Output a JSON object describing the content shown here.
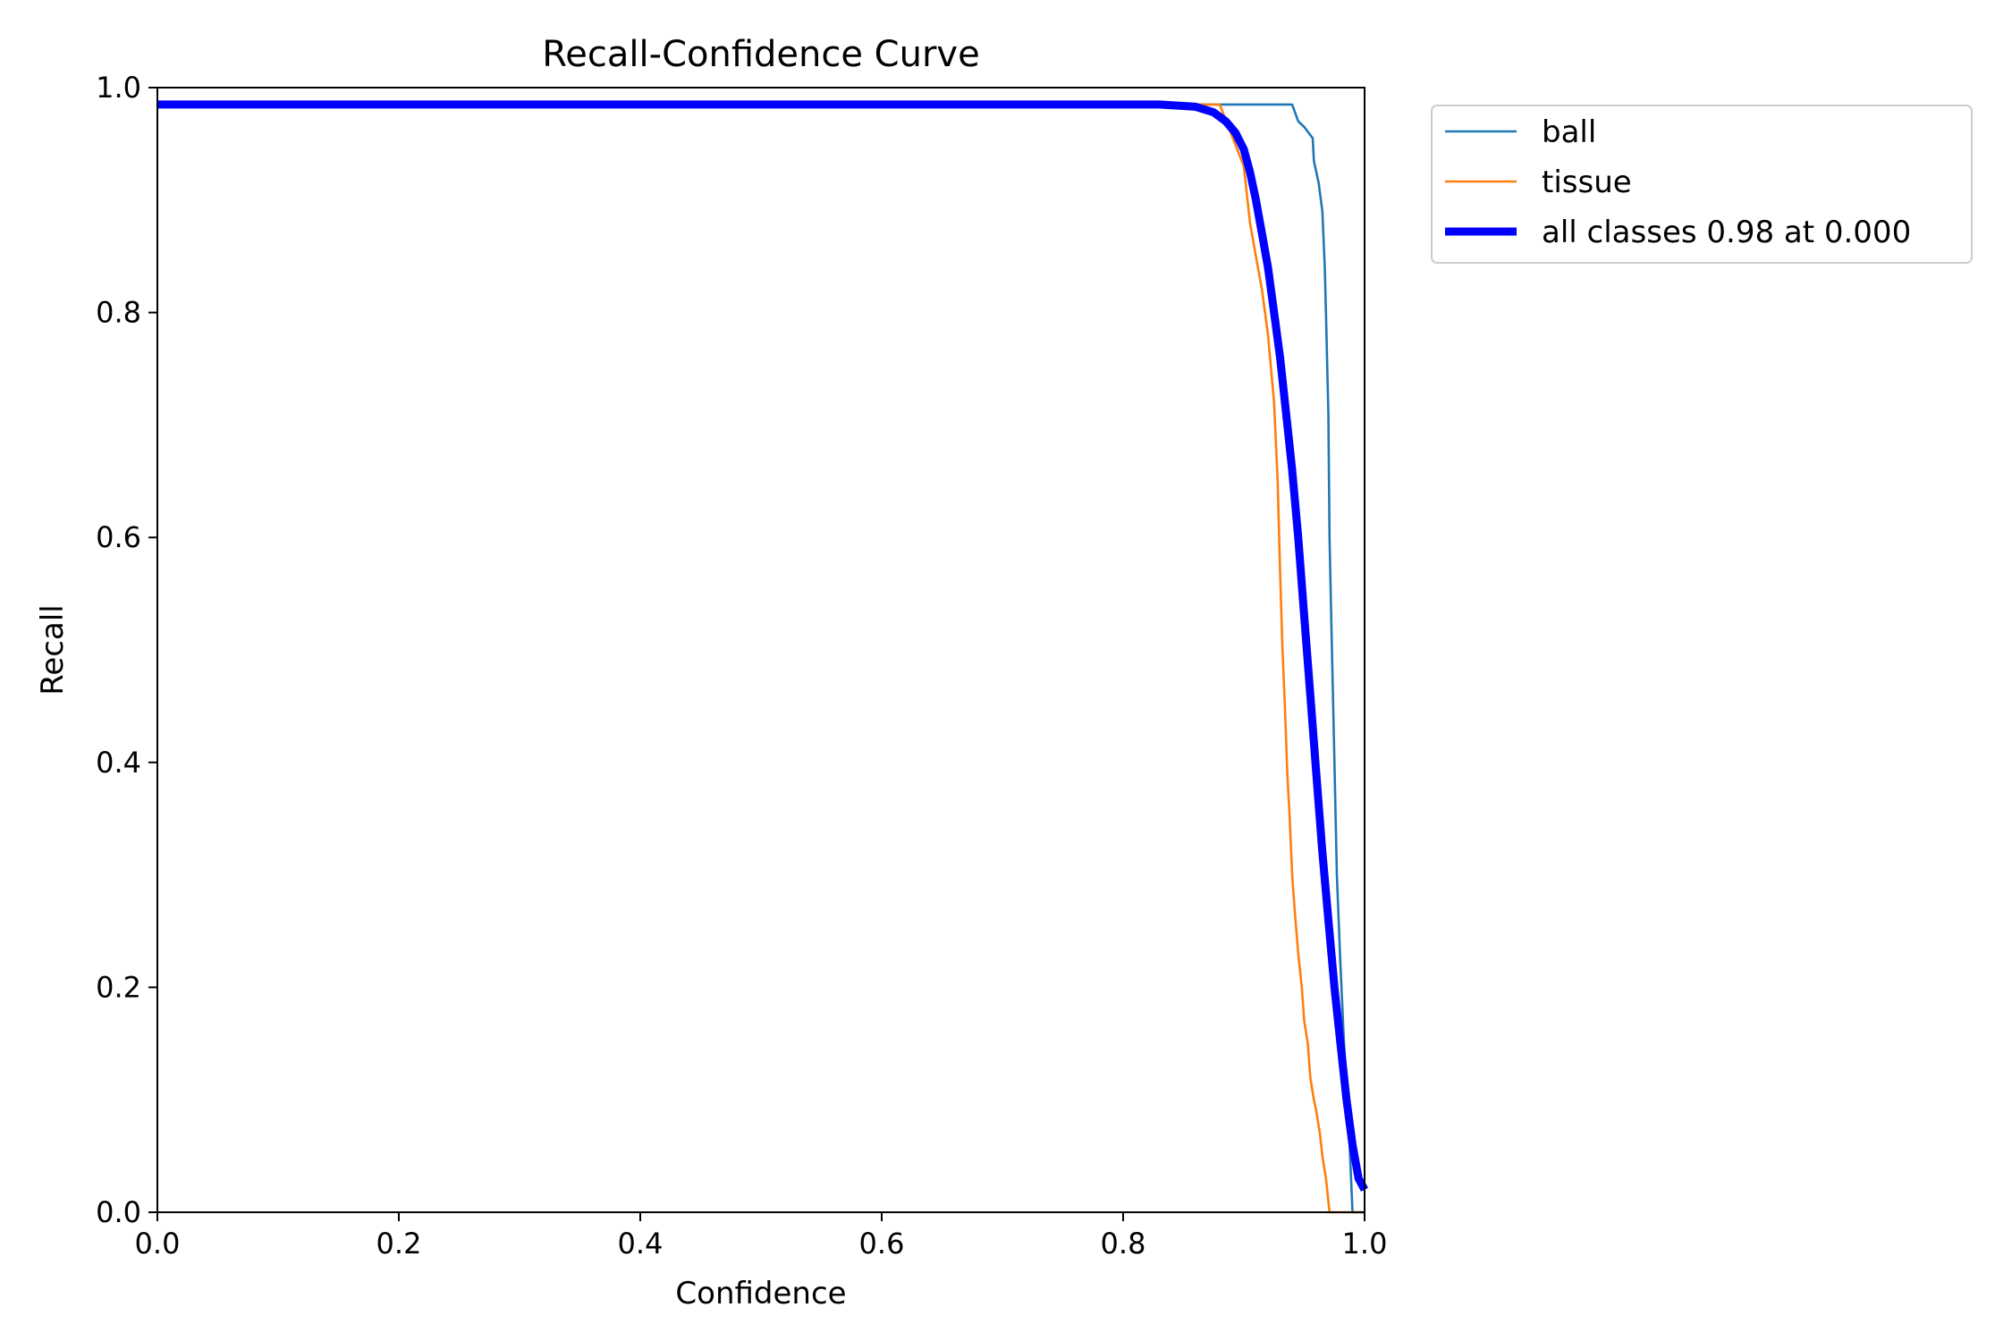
{
  "chart_data": {
    "type": "line",
    "title": "Recall-Confidence Curve",
    "xlabel": "Confidence",
    "ylabel": "Recall",
    "xlim": [
      0,
      1
    ],
    "ylim": [
      0,
      1
    ],
    "xticks": [
      "0.0",
      "0.2",
      "0.4",
      "0.6",
      "0.8",
      "1.0"
    ],
    "yticks": [
      "0.0",
      "0.2",
      "0.4",
      "0.6",
      "0.8",
      "1.0"
    ],
    "grid": false,
    "legend_position": "outside-top-right",
    "series": [
      {
        "name": "ball",
        "color": "#1f77b4",
        "x": [
          0.0,
          0.9,
          0.94,
          0.945,
          0.95,
          0.957,
          0.958,
          0.962,
          0.965,
          0.967,
          0.968,
          0.97,
          0.971,
          0.973,
          0.975,
          0.977,
          0.98,
          0.983,
          0.986,
          0.99,
          1.0
        ],
        "y": [
          0.985,
          0.985,
          0.985,
          0.97,
          0.965,
          0.955,
          0.935,
          0.915,
          0.89,
          0.84,
          0.8,
          0.71,
          0.6,
          0.5,
          0.4,
          0.3,
          0.22,
          0.15,
          0.1,
          0.0,
          0.0
        ]
      },
      {
        "name": "tissue",
        "color": "#ff7f0e",
        "x": [
          0.0,
          0.88,
          0.9,
          0.905,
          0.91,
          0.915,
          0.92,
          0.925,
          0.928,
          0.93,
          0.932,
          0.934,
          0.936,
          0.938,
          0.94,
          0.942,
          0.945,
          0.948,
          0.95,
          0.953,
          0.955,
          0.958,
          0.96,
          0.963,
          0.965,
          0.968,
          0.971,
          0.974,
          0.977,
          0.98,
          1.0
        ],
        "y": [
          0.985,
          0.985,
          0.93,
          0.88,
          0.85,
          0.82,
          0.78,
          0.72,
          0.65,
          0.57,
          0.5,
          0.45,
          0.39,
          0.35,
          0.3,
          0.27,
          0.23,
          0.2,
          0.17,
          0.15,
          0.12,
          0.1,
          0.09,
          0.07,
          0.05,
          0.03,
          0.0,
          0.0,
          0.0,
          0.0,
          0.0
        ]
      },
      {
        "name": "all classes 0.98 at 0.000",
        "color": "#0000ff",
        "bold": true,
        "x": [
          0.0,
          0.83,
          0.86,
          0.875,
          0.885,
          0.893,
          0.9,
          0.905,
          0.91,
          0.915,
          0.92,
          0.925,
          0.93,
          0.935,
          0.94,
          0.945,
          0.95,
          0.955,
          0.96,
          0.965,
          0.97,
          0.975,
          0.98,
          0.985,
          0.99,
          0.995,
          1.0
        ],
        "y": [
          0.985,
          0.985,
          0.983,
          0.978,
          0.97,
          0.96,
          0.945,
          0.925,
          0.9,
          0.87,
          0.84,
          0.8,
          0.76,
          0.71,
          0.66,
          0.6,
          0.53,
          0.46,
          0.39,
          0.32,
          0.26,
          0.2,
          0.15,
          0.1,
          0.06,
          0.03,
          0.02
        ]
      }
    ]
  }
}
